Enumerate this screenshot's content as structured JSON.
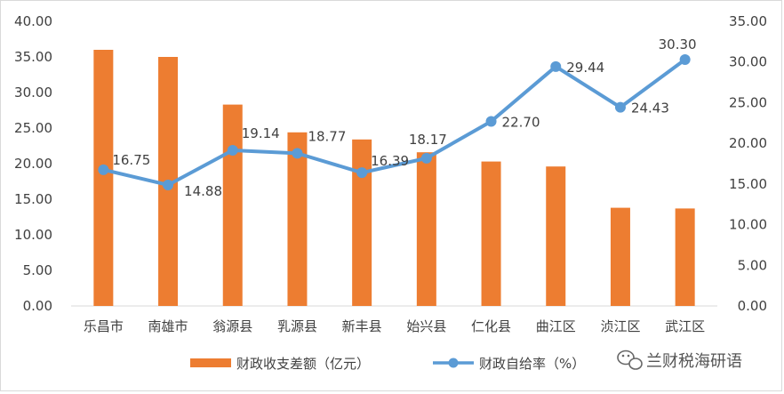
{
  "chart_data": {
    "type": "bar+line",
    "categories": [
      "乐昌市",
      "南雄市",
      "翁源县",
      "乳源县",
      "新丰县",
      "始兴县",
      "仁化县",
      "曲江区",
      "浈江区",
      "武江区"
    ],
    "series": [
      {
        "name": "财政收支差额（亿元）",
        "type": "bar",
        "axis": "left",
        "values": [
          36.0,
          35.0,
          28.3,
          24.4,
          23.4,
          21.6,
          20.3,
          19.6,
          13.8,
          13.7
        ],
        "labels": []
      },
      {
        "name": "财政自给率（%）",
        "type": "line",
        "axis": "right",
        "values": [
          16.75,
          14.88,
          19.14,
          18.77,
          16.39,
          18.17,
          22.7,
          29.44,
          24.43,
          30.3
        ],
        "labels": [
          "16.75",
          "14.88",
          "19.14",
          "18.77",
          "16.39",
          "18.17",
          "22.70",
          "29.44",
          "24.43",
          "30.30"
        ]
      }
    ],
    "y_left": {
      "min": 0,
      "max": 40,
      "ticks": [
        "0.00",
        "5.00",
        "10.00",
        "15.00",
        "20.00",
        "25.00",
        "30.00",
        "35.00",
        "40.00"
      ]
    },
    "y_right": {
      "min": 0,
      "max": 35,
      "ticks": [
        "0.00",
        "5.00",
        "10.00",
        "15.00",
        "20.00",
        "25.00",
        "30.00",
        "35.00"
      ]
    },
    "legend_position": "bottom",
    "grid": false,
    "colors": {
      "bar": "#ED7D31",
      "line": "#5B9BD5",
      "axis": "#d9d9d9",
      "text": "#404040"
    }
  },
  "watermark": {
    "icon": "wechat-icon",
    "text": "兰财税海研语"
  }
}
